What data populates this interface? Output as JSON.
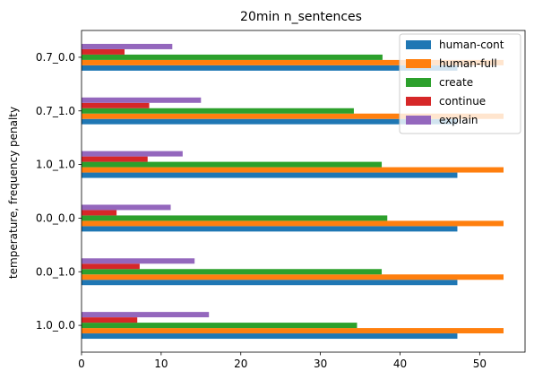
{
  "chart_data": {
    "type": "bar",
    "orientation": "horizontal",
    "title": "20min n_sentences",
    "xlabel": "",
    "ylabel": "temperature, frequency penalty",
    "categories": [
      "1.0_0.0",
      "0.0_1.0",
      "0.0_0.0",
      "1.0_1.0",
      "0.7_1.0",
      "0.7_0.0"
    ],
    "xlim": [
      0,
      55.7
    ],
    "xticks": [
      0,
      10,
      20,
      30,
      40,
      50
    ],
    "legend_position": "top-right",
    "grid": false,
    "series": [
      {
        "name": "human-cont",
        "color": "#1f77b4",
        "values": [
          47.2,
          47.2,
          47.2,
          47.2,
          47.2,
          47.2
        ]
      },
      {
        "name": "human-full",
        "color": "#ff7f0e",
        "values": [
          53.0,
          53.0,
          53.0,
          53.0,
          53.0,
          53.0
        ]
      },
      {
        "name": "create",
        "color": "#2ca02c",
        "values": [
          34.6,
          37.7,
          38.4,
          37.7,
          34.2,
          37.8
        ]
      },
      {
        "name": "continue",
        "color": "#d62728",
        "values": [
          7.0,
          7.3,
          4.4,
          8.3,
          8.5,
          5.4
        ]
      },
      {
        "name": "explain",
        "color": "#9467bd",
        "values": [
          16.0,
          14.2,
          11.2,
          12.7,
          15.0,
          11.4
        ]
      }
    ]
  }
}
